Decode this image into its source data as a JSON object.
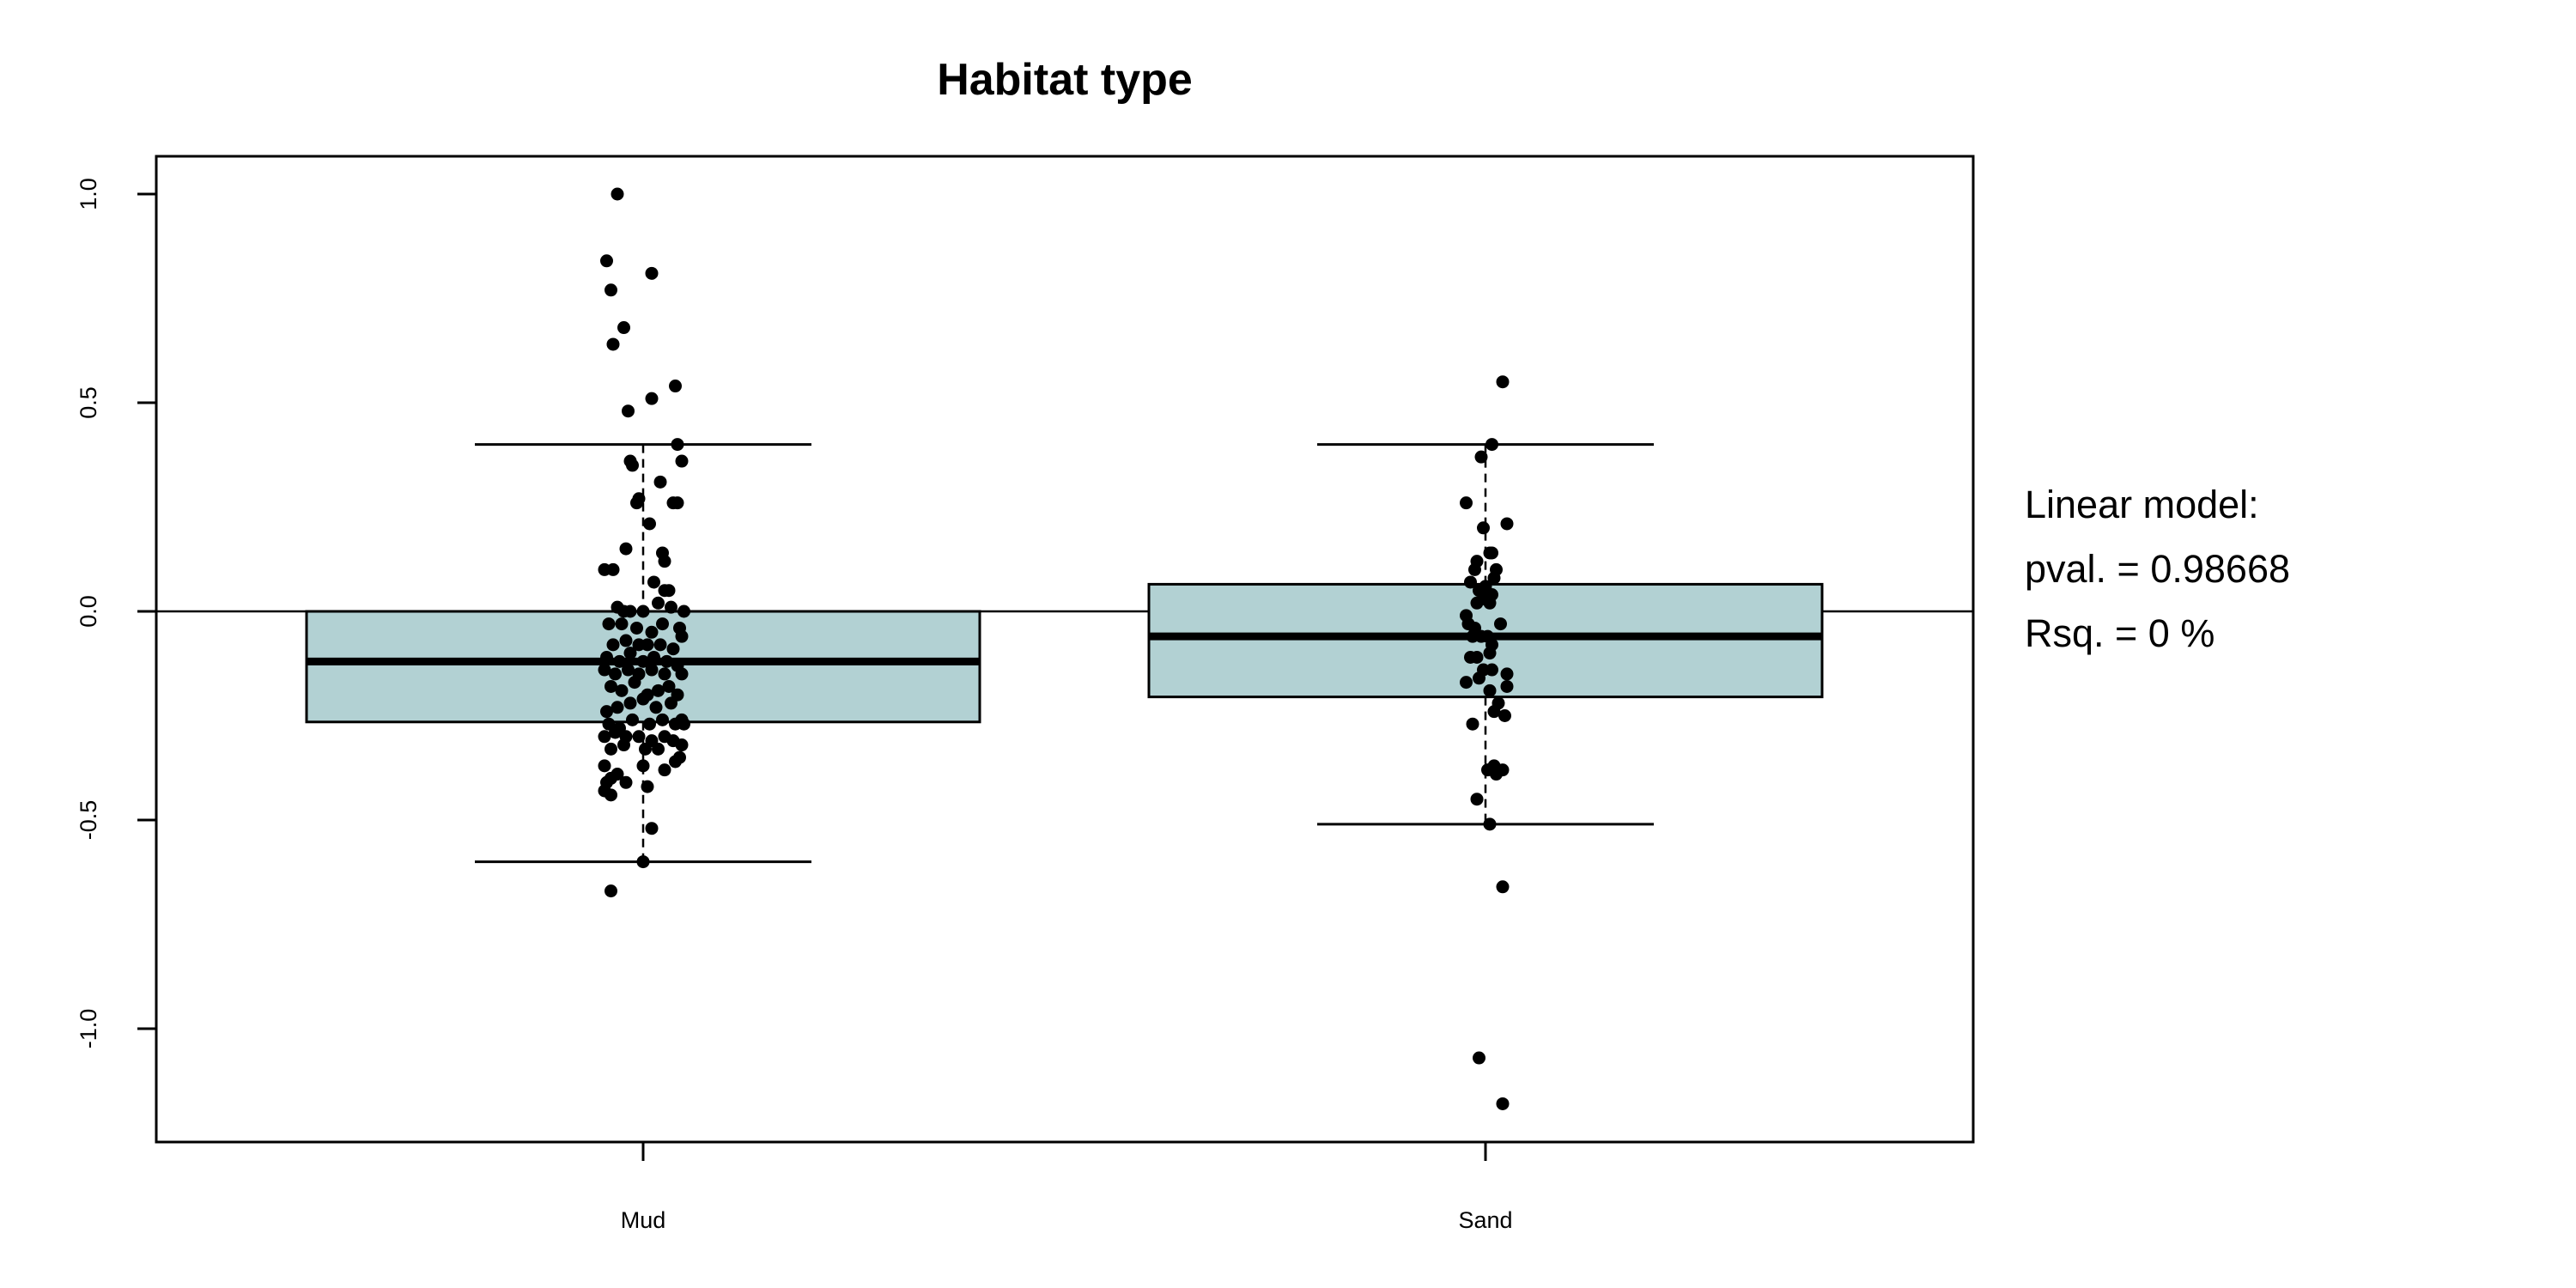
{
  "chart_data": {
    "type": "box",
    "title": "Habitat type",
    "xlabel": "",
    "ylabel": "",
    "ylim": [
      -1.27,
      1.09
    ],
    "yticks": [
      -1.0,
      -0.5,
      0.0,
      0.5,
      1.0
    ],
    "ytick_labels": [
      "-1.0",
      "-0.5",
      "0.0",
      "0.5",
      "1.0"
    ],
    "reference_line": 0.0,
    "box_fill": "#b2d1d3",
    "point_color": "#000000",
    "categories": [
      "Mud",
      "Sand"
    ],
    "boxes": [
      {
        "category": "Mud",
        "q1": -0.265,
        "median": -0.12,
        "q3": 0.0,
        "whisker_low": -0.6,
        "whisker_high": 0.4,
        "points": [
          [
            -0.12,
            1.0
          ],
          [
            -0.17,
            0.84
          ],
          [
            -0.15,
            0.77
          ],
          [
            -0.14,
            0.64
          ],
          [
            -0.09,
            0.68
          ],
          [
            0.04,
            0.81
          ],
          [
            -0.07,
            0.48
          ],
          [
            0.04,
            0.51
          ],
          [
            0.15,
            0.54
          ],
          [
            0.16,
            0.4
          ],
          [
            0.18,
            0.36
          ],
          [
            -0.06,
            0.36
          ],
          [
            -0.05,
            0.35
          ],
          [
            -0.03,
            0.26
          ],
          [
            -0.02,
            0.27
          ],
          [
            0.08,
            0.31
          ],
          [
            0.14,
            0.26
          ],
          [
            0.16,
            0.26
          ],
          [
            0.03,
            0.21
          ],
          [
            -0.08,
            0.15
          ],
          [
            0.09,
            0.14
          ],
          [
            0.1,
            0.12
          ],
          [
            -0.18,
            0.1
          ],
          [
            -0.14,
            0.1
          ],
          [
            0.05,
            0.07
          ],
          [
            0.1,
            0.05
          ],
          [
            0.12,
            0.05
          ],
          [
            -0.12,
            0.01
          ],
          [
            -0.09,
            0.0
          ],
          [
            -0.06,
            0.0
          ],
          [
            0.0,
            0.0
          ],
          [
            0.07,
            0.02
          ],
          [
            0.13,
            0.01
          ],
          [
            0.19,
            0.0
          ],
          [
            -0.16,
            -0.03
          ],
          [
            -0.1,
            -0.03
          ],
          [
            -0.03,
            -0.04
          ],
          [
            0.04,
            -0.05
          ],
          [
            0.09,
            -0.03
          ],
          [
            0.17,
            -0.04
          ],
          [
            -0.14,
            -0.08
          ],
          [
            -0.08,
            -0.07
          ],
          [
            -0.02,
            -0.08
          ],
          [
            0.02,
            -0.08
          ],
          [
            0.08,
            -0.08
          ],
          [
            0.14,
            -0.09
          ],
          [
            0.18,
            -0.06
          ],
          [
            -0.17,
            -0.11
          ],
          [
            -0.11,
            -0.12
          ],
          [
            -0.06,
            -0.1
          ],
          [
            0.0,
            -0.12
          ],
          [
            0.05,
            -0.11
          ],
          [
            0.11,
            -0.12
          ],
          [
            0.16,
            -0.13
          ],
          [
            -0.18,
            -0.14
          ],
          [
            -0.13,
            -0.15
          ],
          [
            -0.07,
            -0.14
          ],
          [
            -0.02,
            -0.15
          ],
          [
            0.04,
            -0.14
          ],
          [
            0.1,
            -0.15
          ],
          [
            0.18,
            -0.15
          ],
          [
            -0.15,
            -0.18
          ],
          [
            -0.1,
            -0.19
          ],
          [
            -0.04,
            -0.17
          ],
          [
            0.02,
            -0.2
          ],
          [
            0.07,
            -0.19
          ],
          [
            0.12,
            -0.18
          ],
          [
            0.16,
            -0.2
          ],
          [
            -0.17,
            -0.24
          ],
          [
            -0.12,
            -0.23
          ],
          [
            -0.06,
            -0.22
          ],
          [
            0.0,
            -0.21
          ],
          [
            0.06,
            -0.23
          ],
          [
            0.13,
            -0.22
          ],
          [
            0.18,
            -0.26
          ],
          [
            -0.16,
            -0.27
          ],
          [
            -0.11,
            -0.28
          ],
          [
            -0.05,
            -0.26
          ],
          [
            0.03,
            -0.27
          ],
          [
            0.09,
            -0.26
          ],
          [
            0.15,
            -0.27
          ],
          [
            0.19,
            -0.27
          ],
          [
            -0.18,
            -0.3
          ],
          [
            -0.13,
            -0.29
          ],
          [
            -0.08,
            -0.3
          ],
          [
            -0.02,
            -0.3
          ],
          [
            0.04,
            -0.31
          ],
          [
            0.1,
            -0.3
          ],
          [
            0.14,
            -0.31
          ],
          [
            0.18,
            -0.32
          ],
          [
            -0.15,
            -0.33
          ],
          [
            -0.09,
            -0.32
          ],
          [
            0.01,
            -0.33
          ],
          [
            0.07,
            -0.33
          ],
          [
            0.17,
            -0.35
          ],
          [
            -0.18,
            -0.37
          ],
          [
            -0.12,
            -0.39
          ],
          [
            0.0,
            -0.37
          ],
          [
            0.1,
            -0.38
          ],
          [
            0.15,
            -0.36
          ],
          [
            -0.17,
            -0.41
          ],
          [
            -0.15,
            -0.4
          ],
          [
            -0.18,
            -0.43
          ],
          [
            -0.15,
            -0.44
          ],
          [
            -0.08,
            -0.41
          ],
          [
            0.02,
            -0.42
          ],
          [
            0.04,
            -0.52
          ],
          [
            0.0,
            -0.6
          ],
          [
            -0.15,
            -0.67
          ]
        ]
      },
      {
        "category": "Sand",
        "q1": -0.205,
        "median": -0.06,
        "q3": 0.065,
        "whisker_low": -0.51,
        "whisker_high": 0.4,
        "points": [
          [
            0.08,
            0.55
          ],
          [
            0.03,
            0.4
          ],
          [
            -0.02,
            0.37
          ],
          [
            0.1,
            0.21
          ],
          [
            -0.09,
            0.26
          ],
          [
            -0.01,
            0.2
          ],
          [
            0.02,
            0.14
          ],
          [
            0.03,
            0.14
          ],
          [
            -0.04,
            0.12
          ],
          [
            -0.05,
            0.1
          ],
          [
            0.05,
            0.1
          ],
          [
            0.04,
            0.08
          ],
          [
            -0.07,
            0.07
          ],
          [
            0.0,
            0.06
          ],
          [
            -0.03,
            0.05
          ],
          [
            0.0,
            0.04
          ],
          [
            0.03,
            0.04
          ],
          [
            -0.01,
            0.03
          ],
          [
            0.02,
            0.02
          ],
          [
            -0.04,
            0.02
          ],
          [
            -0.09,
            -0.01
          ],
          [
            -0.08,
            -0.03
          ],
          [
            -0.05,
            -0.04
          ],
          [
            0.07,
            -0.03
          ],
          [
            -0.06,
            -0.06
          ],
          [
            -0.02,
            -0.06
          ],
          [
            0.01,
            -0.06
          ],
          [
            0.03,
            -0.08
          ],
          [
            -0.04,
            -0.11
          ],
          [
            -0.07,
            -0.11
          ],
          [
            0.02,
            -0.1
          ],
          [
            -0.01,
            -0.14
          ],
          [
            0.03,
            -0.14
          ],
          [
            0.1,
            -0.15
          ],
          [
            0.1,
            -0.18
          ],
          [
            -0.09,
            -0.17
          ],
          [
            -0.03,
            -0.16
          ],
          [
            0.02,
            -0.19
          ],
          [
            0.06,
            -0.22
          ],
          [
            0.04,
            -0.24
          ],
          [
            0.09,
            -0.25
          ],
          [
            -0.06,
            -0.27
          ],
          [
            0.01,
            -0.38
          ],
          [
            0.04,
            -0.37
          ],
          [
            0.05,
            -0.39
          ],
          [
            0.08,
            -0.38
          ],
          [
            -0.04,
            -0.45
          ],
          [
            0.02,
            -0.51
          ],
          [
            0.08,
            -0.66
          ],
          [
            -0.03,
            -1.07
          ],
          [
            0.08,
            -1.18
          ]
        ]
      }
    ]
  },
  "side_panel": {
    "line1": "Linear model:",
    "line2": "pval. = 0.98668",
    "line3": "Rsq. = 0 %"
  }
}
